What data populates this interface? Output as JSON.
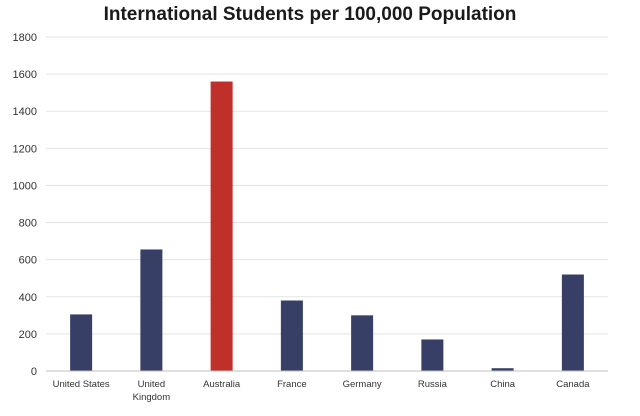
{
  "chart_data": {
    "type": "bar",
    "title": "International Students per 100,000 Population",
    "xlabel": "",
    "ylabel": "",
    "categories": [
      "United States",
      "United Kingdom",
      "Australia",
      "France",
      "Germany",
      "Russia",
      "China",
      "Canada"
    ],
    "category_lines": [
      [
        "United States"
      ],
      [
        "United",
        "Kingdom"
      ],
      [
        "Australia"
      ],
      [
        "France"
      ],
      [
        "Germany"
      ],
      [
        "Russia"
      ],
      [
        "China"
      ],
      [
        "Canada"
      ]
    ],
    "values": [
      305,
      655,
      1560,
      380,
      300,
      170,
      15,
      520
    ],
    "ylim": [
      0,
      1800
    ],
    "yticks": [
      "0",
      "200",
      "400",
      "600",
      "800",
      "1000",
      "1200",
      "1400",
      "1600",
      "1800"
    ],
    "grid": true,
    "legend": "none",
    "colors": {
      "default_bar": "#373f66",
      "highlight_bar": "#c0302a",
      "gridline": "#e3e3e3",
      "axis": "#bfbfbf"
    },
    "highlight_category": "Australia"
  }
}
